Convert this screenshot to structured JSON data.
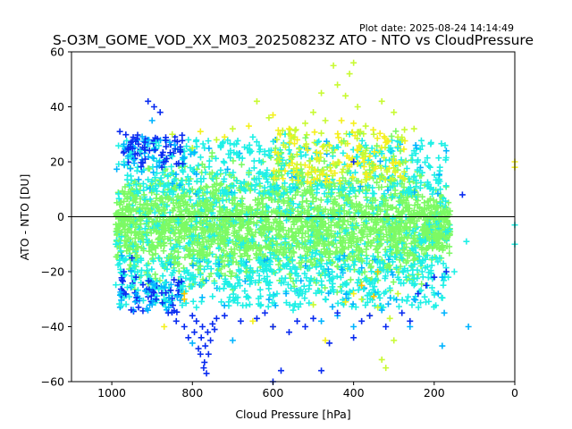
{
  "chart_data": {
    "type": "scatter",
    "plot_date": "Plot date: 2025-08-24 14:14:49",
    "title": "S-O3M_GOME_VOD_XX_M03_20250823Z ATO - NTO vs CloudPressure",
    "xlabel": "Cloud Pressure [hPa]",
    "ylabel": "ATO - NTO [DU]",
    "xlim": [
      1100,
      0
    ],
    "ylim": [
      -60,
      60
    ],
    "x_inverted": true,
    "xticks": [
      1000,
      800,
      600,
      400,
      200,
      0
    ],
    "xtick_labels": [
      "1000",
      "800",
      "600",
      "400",
      "200",
      "0"
    ],
    "yticks": [
      -60,
      -40,
      -20,
      0,
      20,
      40,
      60
    ],
    "ytick_labels": [
      "−60",
      "−40",
      "−20",
      "0",
      "20",
      "40",
      "60"
    ],
    "reference_line": 0,
    "marker": "+",
    "grid": false,
    "legend": "none",
    "colors": {
      "blue": "#0a2cf0",
      "cyan_blue": "#00b4ff",
      "cyan": "#1ef0e6",
      "green": "#7cfa64",
      "yellow_green": "#c8fa32",
      "yellow": "#f5f01e",
      "orange": "#ffc800"
    },
    "series": [
      {
        "color_key": "green",
        "description": "dense core, cloud pressure 1000–150 hPa, ATO-NTO roughly -20 to +18 DU",
        "points": [
          [
            985,
            -5
          ],
          [
            960,
            3
          ],
          [
            940,
            -12
          ],
          [
            920,
            8
          ],
          [
            900,
            -2
          ],
          [
            880,
            12
          ],
          [
            860,
            -15
          ],
          [
            840,
            5
          ],
          [
            820,
            -8
          ],
          [
            800,
            10
          ],
          [
            780,
            -18
          ],
          [
            760,
            2
          ],
          [
            740,
            14
          ],
          [
            720,
            -10
          ],
          [
            700,
            6
          ],
          [
            680,
            -4
          ],
          [
            660,
            16
          ],
          [
            640,
            -14
          ],
          [
            620,
            0
          ],
          [
            600,
            9
          ],
          [
            580,
            -11
          ],
          [
            560,
            4
          ],
          [
            540,
            15
          ],
          [
            520,
            -6
          ],
          [
            500,
            7
          ],
          [
            480,
            -16
          ],
          [
            460,
            11
          ],
          [
            440,
            -3
          ],
          [
            420,
            13
          ],
          [
            400,
            -9
          ],
          [
            380,
            2
          ],
          [
            360,
            17
          ],
          [
            340,
            -13
          ],
          [
            320,
            6
          ],
          [
            300,
            -7
          ],
          [
            280,
            12
          ],
          [
            260,
            -2
          ],
          [
            240,
            8
          ],
          [
            220,
            -12
          ],
          [
            200,
            4
          ],
          [
            190,
            -6
          ]
        ]
      },
      {
        "color_key": "cyan",
        "description": "outer envelope of the cloud, up to about +30 / -35 DU",
        "points": [
          [
            990,
            -10
          ],
          [
            970,
            20
          ],
          [
            950,
            -25
          ],
          [
            930,
            24
          ],
          [
            910,
            -28
          ],
          [
            890,
            27
          ],
          [
            870,
            -30
          ],
          [
            850,
            22
          ],
          [
            830,
            -26
          ],
          [
            810,
            28
          ],
          [
            790,
            -33
          ],
          [
            770,
            25
          ],
          [
            750,
            -29
          ],
          [
            730,
            26
          ],
          [
            710,
            -31
          ],
          [
            690,
            23
          ],
          [
            670,
            -27
          ],
          [
            650,
            29
          ],
          [
            630,
            -32
          ],
          [
            610,
            24
          ],
          [
            590,
            -28
          ],
          [
            570,
            30
          ],
          [
            550,
            -34
          ],
          [
            530,
            22
          ],
          [
            510,
            -25
          ],
          [
            490,
            27
          ],
          [
            470,
            -30
          ],
          [
            450,
            25
          ],
          [
            430,
            -27
          ],
          [
            410,
            30
          ],
          [
            390,
            -24
          ],
          [
            370,
            26
          ],
          [
            350,
            -28
          ],
          [
            330,
            23
          ],
          [
            310,
            -26
          ],
          [
            290,
            25
          ],
          [
            270,
            -22
          ],
          [
            250,
            24
          ],
          [
            230,
            -20
          ],
          [
            210,
            18
          ],
          [
            195,
            -15
          ],
          [
            185,
            10
          ],
          [
            165,
            -22
          ],
          [
            150,
            -20
          ],
          [
            120,
            -9
          ],
          [
            0,
            -10
          ],
          [
            0,
            -3
          ]
        ]
      },
      {
        "color_key": "yellow_green",
        "description": "scattered high outliers, mostly 500–300 hPa",
        "points": [
          [
            850,
            30
          ],
          [
            800,
            25
          ],
          [
            740,
            28
          ],
          [
            700,
            32
          ],
          [
            640,
            42
          ],
          [
            610,
            36
          ],
          [
            560,
            30
          ],
          [
            520,
            34
          ],
          [
            500,
            38
          ],
          [
            480,
            45
          ],
          [
            470,
            35
          ],
          [
            450,
            55
          ],
          [
            440,
            48
          ],
          [
            420,
            44
          ],
          [
            410,
            52
          ],
          [
            400,
            56
          ],
          [
            390,
            40
          ],
          [
            370,
            33
          ],
          [
            350,
            30
          ],
          [
            330,
            42
          ],
          [
            300,
            38
          ],
          [
            280,
            28
          ],
          [
            250,
            32
          ],
          [
            380,
            -30
          ],
          [
            340,
            -33
          ],
          [
            310,
            -37
          ],
          [
            290,
            -28
          ],
          [
            500,
            -32
          ],
          [
            330,
            -52
          ],
          [
            320,
            -55
          ],
          [
            300,
            -45
          ]
        ]
      },
      {
        "color_key": "yellow",
        "description": "yellow points",
        "points": [
          [
            780,
            31
          ],
          [
            720,
            29
          ],
          [
            660,
            33
          ],
          [
            600,
            37
          ],
          [
            560,
            32
          ],
          [
            540,
            28
          ],
          [
            460,
            26
          ],
          [
            430,
            35
          ],
          [
            400,
            34
          ],
          [
            360,
            22
          ],
          [
            320,
            27
          ],
          [
            420,
            -31
          ],
          [
            360,
            -36
          ],
          [
            400,
            -28
          ],
          [
            470,
            -45
          ],
          [
            650,
            -38
          ],
          [
            870,
            -40
          ],
          [
            0,
            18
          ],
          [
            0,
            20
          ]
        ]
      },
      {
        "color_key": "orange",
        "description": "orange points",
        "points": [
          [
            820,
            -30
          ],
          [
            600,
            -40
          ],
          [
            380,
            -25
          ],
          [
            350,
            -29
          ],
          [
            340,
            -20
          ],
          [
            820,
            -28
          ]
        ]
      },
      {
        "color_key": "cyan_blue",
        "description": "light blue outliers on the fringes",
        "points": [
          [
            700,
            -45
          ],
          [
            480,
            -38
          ],
          [
            440,
            -36
          ],
          [
            400,
            -40
          ],
          [
            260,
            -40
          ],
          [
            250,
            -30
          ],
          [
            190,
            -28
          ],
          [
            180,
            -22
          ],
          [
            170,
            24
          ],
          [
            175,
            -35
          ],
          [
            330,
            -34
          ],
          [
            900,
            -32
          ],
          [
            940,
            -28
          ],
          [
            960,
            22
          ],
          [
            900,
            35
          ],
          [
            180,
            -47
          ],
          [
            115,
            -40
          ],
          [
            800,
            -46
          ]
        ]
      },
      {
        "color_key": "blue",
        "description": "blue outliers, incl. dense cluster near 780 hPa down to -57 DU",
        "points": [
          [
            980,
            31
          ],
          [
            970,
            -20
          ],
          [
            975,
            -23
          ],
          [
            960,
            25
          ],
          [
            950,
            -15
          ],
          [
            940,
            -22
          ],
          [
            910,
            42
          ],
          [
            895,
            40
          ],
          [
            890,
            -30
          ],
          [
            880,
            38
          ],
          [
            860,
            -35
          ],
          [
            840,
            -38
          ],
          [
            820,
            -40
          ],
          [
            810,
            -44
          ],
          [
            800,
            -36
          ],
          [
            795,
            -42
          ],
          [
            790,
            -38
          ],
          [
            785,
            -48
          ],
          [
            780,
            -50
          ],
          [
            778,
            -44
          ],
          [
            775,
            -40
          ],
          [
            772,
            -55
          ],
          [
            770,
            -53
          ],
          [
            768,
            -47
          ],
          [
            765,
            -57
          ],
          [
            762,
            -42
          ],
          [
            760,
            -50
          ],
          [
            755,
            -45
          ],
          [
            750,
            -39
          ],
          [
            745,
            -41
          ],
          [
            740,
            -37
          ],
          [
            720,
            -36
          ],
          [
            680,
            -38
          ],
          [
            640,
            -37
          ],
          [
            620,
            -35
          ],
          [
            600,
            -40
          ],
          [
            580,
            -56
          ],
          [
            560,
            -42
          ],
          [
            540,
            -38
          ],
          [
            520,
            -40
          ],
          [
            500,
            -37
          ],
          [
            480,
            -56
          ],
          [
            460,
            -46
          ],
          [
            440,
            -35
          ],
          [
            400,
            -44
          ],
          [
            380,
            -38
          ],
          [
            360,
            -36
          ],
          [
            320,
            -40
          ],
          [
            280,
            -35
          ],
          [
            260,
            -38
          ],
          [
            240,
            -28
          ],
          [
            220,
            -25
          ],
          [
            200,
            -22
          ],
          [
            170,
            -20
          ],
          [
            130,
            8
          ],
          [
            600,
            -60
          ],
          [
            400,
            20
          ]
        ]
      }
    ]
  }
}
